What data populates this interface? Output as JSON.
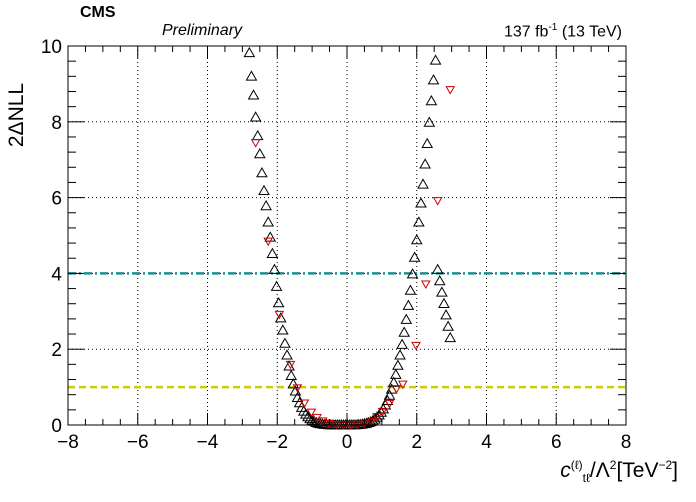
{
  "header": {
    "experiment": "CMS",
    "status": "Preliminary",
    "lumi_value": "137 fb",
    "lumi_exp": "-1",
    "energy": "(13 TeV)"
  },
  "axes": {
    "ylabel": "2ΔNLL",
    "xlabel_symbol": "c",
    "xlabel_super": "(ℓ)",
    "xlabel_sub": "tℓ",
    "xlabel_mid": "/Λ",
    "xlabel_mid_exp": "2",
    "xlabel_unit_open": "[TeV",
    "xlabel_unit_exp": "−2",
    "xlabel_unit_close": "]"
  },
  "chart_data": {
    "type": "scatter",
    "xlim": [
      -8,
      8
    ],
    "ylim": [
      0,
      10
    ],
    "x_ticks": [
      "−8",
      "−6",
      "−4",
      "−2",
      "0",
      "2",
      "4",
      "6",
      "8"
    ],
    "y_ticks": [
      "0",
      "2",
      "4",
      "6",
      "8",
      "10"
    ],
    "grid": true,
    "reference_lines": [
      {
        "y": 4,
        "color": "#1f8f8f",
        "style": "dash-dot"
      },
      {
        "y": 1,
        "color": "#cccc00",
        "style": "dashed"
      }
    ],
    "series": [
      {
        "marker": "open-triangle-up",
        "color": "#000000",
        "x": [
          -2.8,
          -2.74,
          -2.68,
          -2.62,
          -2.56,
          -2.5,
          -2.44,
          -2.38,
          -2.32,
          -2.26,
          -2.2,
          -2.14,
          -2.08,
          -2.02,
          -1.96,
          -1.9,
          -1.84,
          -1.78,
          -1.72,
          -1.66,
          -1.6,
          -1.54,
          -1.48,
          -1.42,
          -1.36,
          -1.3,
          -1.24,
          -1.18,
          -1.12,
          -1.06,
          -1.0,
          -0.94,
          -0.88,
          -0.82,
          -0.76,
          -0.7,
          -0.64,
          -0.58,
          -0.52,
          -0.46,
          -0.4,
          -0.34,
          -0.28,
          -0.22,
          -0.16,
          -0.1,
          -0.04,
          0.02,
          0.08,
          0.14,
          0.2,
          0.26,
          0.32,
          0.38,
          0.44,
          0.5,
          0.56,
          0.62,
          0.68,
          0.74,
          0.8,
          0.86,
          0.92,
          0.98,
          1.04,
          1.1,
          1.16,
          1.22,
          1.28,
          1.34,
          1.4,
          1.46,
          1.52,
          1.58,
          1.64,
          1.7,
          1.76,
          1.82,
          1.88,
          1.94,
          2.0,
          2.06,
          2.12,
          2.18,
          2.24,
          2.3,
          2.36,
          2.42,
          2.48,
          2.54,
          2.6,
          2.66,
          2.72,
          2.78,
          2.84,
          2.9,
          2.96
        ],
        "y": [
          9.82,
          9.2,
          8.7,
          8.12,
          7.63,
          7.15,
          6.65,
          6.18,
          5.78,
          5.35,
          4.95,
          4.52,
          4.1,
          3.65,
          3.22,
          2.82,
          2.5,
          2.15,
          1.84,
          1.55,
          1.3,
          1.08,
          0.89,
          0.72,
          0.58,
          0.46,
          0.36,
          0.28,
          0.21,
          0.16,
          0.12,
          0.09,
          0.06,
          0.04,
          0.03,
          0.02,
          0.01,
          0.01,
          0.0,
          0.0,
          0.0,
          0.0,
          0.0,
          0.0,
          0.0,
          0.0,
          0.0,
          0.0,
          0.0,
          0.0,
          0.0,
          0.0,
          0.01,
          0.01,
          0.02,
          0.03,
          0.04,
          0.06,
          0.08,
          0.11,
          0.15,
          0.2,
          0.26,
          0.33,
          0.42,
          0.52,
          0.64,
          0.78,
          0.94,
          1.12,
          1.33,
          1.57,
          1.84,
          2.12,
          2.44,
          2.78,
          3.15,
          3.55,
          3.98,
          4.42,
          4.88,
          5.35,
          5.85,
          6.35,
          6.88,
          7.42,
          7.98,
          8.55,
          9.1,
          9.62,
          4.1,
          3.8,
          3.5,
          3.2,
          2.9,
          2.6,
          2.3
        ]
      },
      {
        "marker": "open-triangle-down",
        "color": "#cc0000",
        "x": [
          -2.62,
          -2.26,
          -1.94,
          -1.62,
          -1.42,
          -1.22,
          -1.02,
          -0.86,
          -0.7,
          -0.5,
          -0.3,
          -0.1,
          0.1,
          0.3,
          0.5,
          0.7,
          0.86,
          1.02,
          1.22,
          1.42,
          1.6,
          1.98,
          2.26,
          2.6,
          2.96
        ],
        "y": [
          7.45,
          4.85,
          2.92,
          1.6,
          0.98,
          0.58,
          0.34,
          0.2,
          0.11,
          0.04,
          0.01,
          0.0,
          0.0,
          0.01,
          0.03,
          0.1,
          0.22,
          0.36,
          0.57,
          0.96,
          1.08,
          2.1,
          3.72,
          5.92,
          8.85
        ]
      }
    ]
  }
}
